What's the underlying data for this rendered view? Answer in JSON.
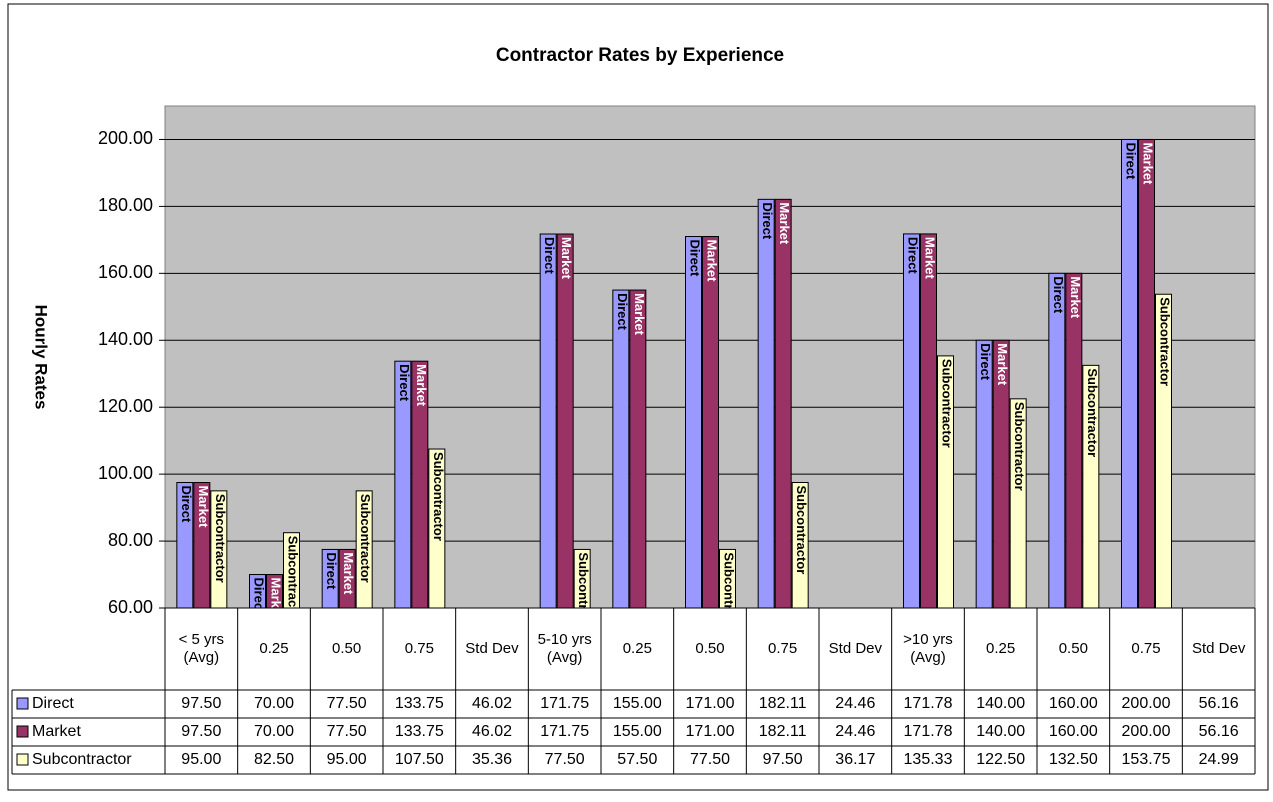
{
  "chart_data": {
    "type": "bar",
    "title": "Contractor Rates by Experience",
    "y_label": "Hourly Rates",
    "categories": [
      "< 5 yrs (Avg)",
      "0.25",
      "0.50",
      "0.75",
      "Std Dev",
      "5-10 yrs (Avg)",
      "0.25",
      "0.50",
      "0.75",
      "Std Dev",
      ">10 yrs (Avg)",
      "0.25",
      "0.50",
      "0.75",
      "Std Dev"
    ],
    "series": [
      {
        "name": "Direct",
        "color": "#9999ff",
        "values": [
          97.5,
          70,
          77.5,
          133.75,
          46.02,
          171.75,
          155,
          171,
          182.11,
          24.46,
          171.78,
          140,
          160,
          200,
          56.16
        ],
        "value_labels": [
          "97.50",
          "70.00",
          "77.50",
          "133.75",
          "46.02",
          "171.75",
          "155.00",
          "171.00",
          "182.11",
          "24.46",
          "171.78",
          "140.00",
          "160.00",
          "200.00",
          "56.16"
        ]
      },
      {
        "name": "Market",
        "color": "#993366",
        "values": [
          97.5,
          70,
          77.5,
          133.75,
          46.02,
          171.75,
          155,
          171,
          182.11,
          24.46,
          171.78,
          140,
          160,
          200,
          56.16
        ],
        "value_labels": [
          "97.50",
          "70.00",
          "77.50",
          "133.75",
          "46.02",
          "171.75",
          "155.00",
          "171.00",
          "182.11",
          "24.46",
          "171.78",
          "140.00",
          "160.00",
          "200.00",
          "56.16"
        ]
      },
      {
        "name": "Subcontractor",
        "color": "#ffffcc",
        "values": [
          95,
          82.5,
          95,
          107.5,
          35.36,
          77.5,
          57.5,
          77.5,
          97.5,
          36.17,
          135.33,
          122.5,
          132.5,
          153.75,
          24.99
        ],
        "value_labels": [
          "95.00",
          "82.50",
          "95.00",
          "107.50",
          "35.36",
          "77.50",
          "57.50",
          "77.50",
          "97.50",
          "36.17",
          "135.33",
          "122.50",
          "132.50",
          "153.75",
          "24.99"
        ]
      }
    ],
    "ylim": [
      60,
      210
    ],
    "yticks": [
      {
        "value": 60,
        "label": "60.00"
      },
      {
        "value": 80,
        "label": "80.00"
      },
      {
        "value": 100,
        "label": "100.00"
      },
      {
        "value": 120,
        "label": "120.00"
      },
      {
        "value": 140,
        "label": "140.00"
      },
      {
        "value": 160,
        "label": "160.00"
      },
      {
        "value": 180,
        "label": "180.00"
      },
      {
        "value": 200,
        "label": "200.00"
      }
    ],
    "grid": true,
    "plot_background": "#c0c0c0"
  }
}
